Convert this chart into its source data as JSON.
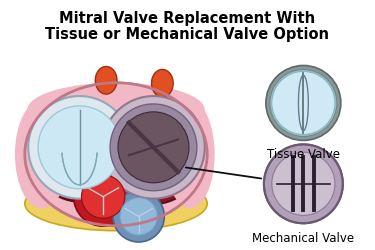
{
  "title_line1": "Mitral Valve Replacement With",
  "title_line2": "Tissue or Mechanical Valve Option",
  "title_fontsize": 10.5,
  "bg_color": "#ffffff",
  "tissue_label": "Tissue Valve",
  "mechanical_label": "Mechanical Valve",
  "label_fontsize": 8.5,
  "colors": {
    "heart_pink_outer": "#f2b8c6",
    "heart_dark_red": "#8b1520",
    "heart_crimson": "#b52030",
    "heart_bright_red": "#cc2030",
    "heart_pink_inner": "#e8909e",
    "mitral_ring_light": "#c8b0c0",
    "mitral_dark": "#6a5560",
    "mitral_very_dark": "#4a3545",
    "left_valve_bg": "#cce8f4",
    "left_valve_ring": "#c0d8e4",
    "fat_yellow": "#f0d060",
    "fat_yellow_edge": "#c8a820",
    "orange_bump": "#e05020",
    "red_valve": "#cc2020",
    "red_valve_inner": "#e03030",
    "blue_valve": "#90b8d8",
    "blue_valve_ring": "#6090b0",
    "tissue_outer_ring": "#8a9898",
    "tissue_mid_ring": "#a8bcbc",
    "tissue_inner": "#d0eaf5",
    "tissue_line": "#5a7878",
    "mech_outer_ring": "#b0a0b8",
    "mech_outer_edge": "#806878",
    "mech_inner": "#ccc0d0",
    "mech_bar": "#282030",
    "arrow_color": "#101010"
  }
}
